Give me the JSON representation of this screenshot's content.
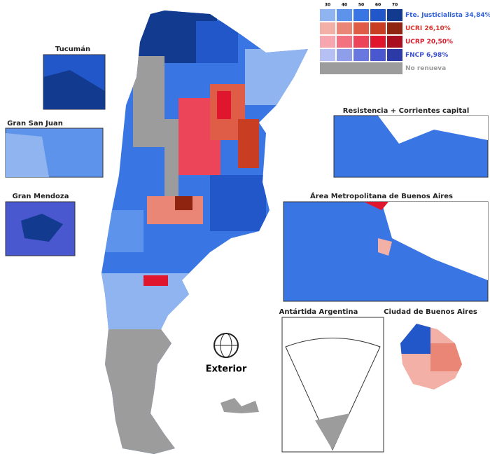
{
  "legend": {
    "scale": [
      30,
      40,
      50,
      60,
      70
    ],
    "entries": [
      {
        "name": "Fte. Justicialista 34,84%",
        "label_color": "#2f5fd8",
        "colors": [
          "#8fb4ef",
          "#5d93ea",
          "#3a76e3",
          "#2257c9",
          "#123a8f"
        ]
      },
      {
        "name": "UCRI 26,10%",
        "label_color": "#d8362a",
        "colors": [
          "#f2b0a6",
          "#ea8676",
          "#df5c47",
          "#c93d22",
          "#8f2410"
        ]
      },
      {
        "name": "UCRP 20,50%",
        "label_color": "#d81d2e",
        "colors": [
          "#f7a5ae",
          "#f27282",
          "#ec4458",
          "#e0162e",
          "#a80e20"
        ]
      },
      {
        "name": "FNCP 6,98%",
        "label_color": "#3b4fd0",
        "colors": [
          "#b6c0f2",
          "#8f9ee9",
          "#6978df",
          "#4a58cf",
          "#2c3aa8"
        ]
      },
      {
        "name": "No renueva",
        "label_color": "#9a9a9a",
        "colors": [
          "#9c9c9c"
        ]
      }
    ]
  },
  "insets": {
    "tucuman": "Tucumán",
    "san_juan": "Gran San Juan",
    "mendoza": "Gran Mendoza",
    "resistencia": "Resistencia + Corrientes capital",
    "amba": "Área Metropolitana de Buenos Aires",
    "antartida": "Antártida Argentina",
    "caba": "Ciudad de Buenos Aires"
  },
  "exterior": "Exterior"
}
